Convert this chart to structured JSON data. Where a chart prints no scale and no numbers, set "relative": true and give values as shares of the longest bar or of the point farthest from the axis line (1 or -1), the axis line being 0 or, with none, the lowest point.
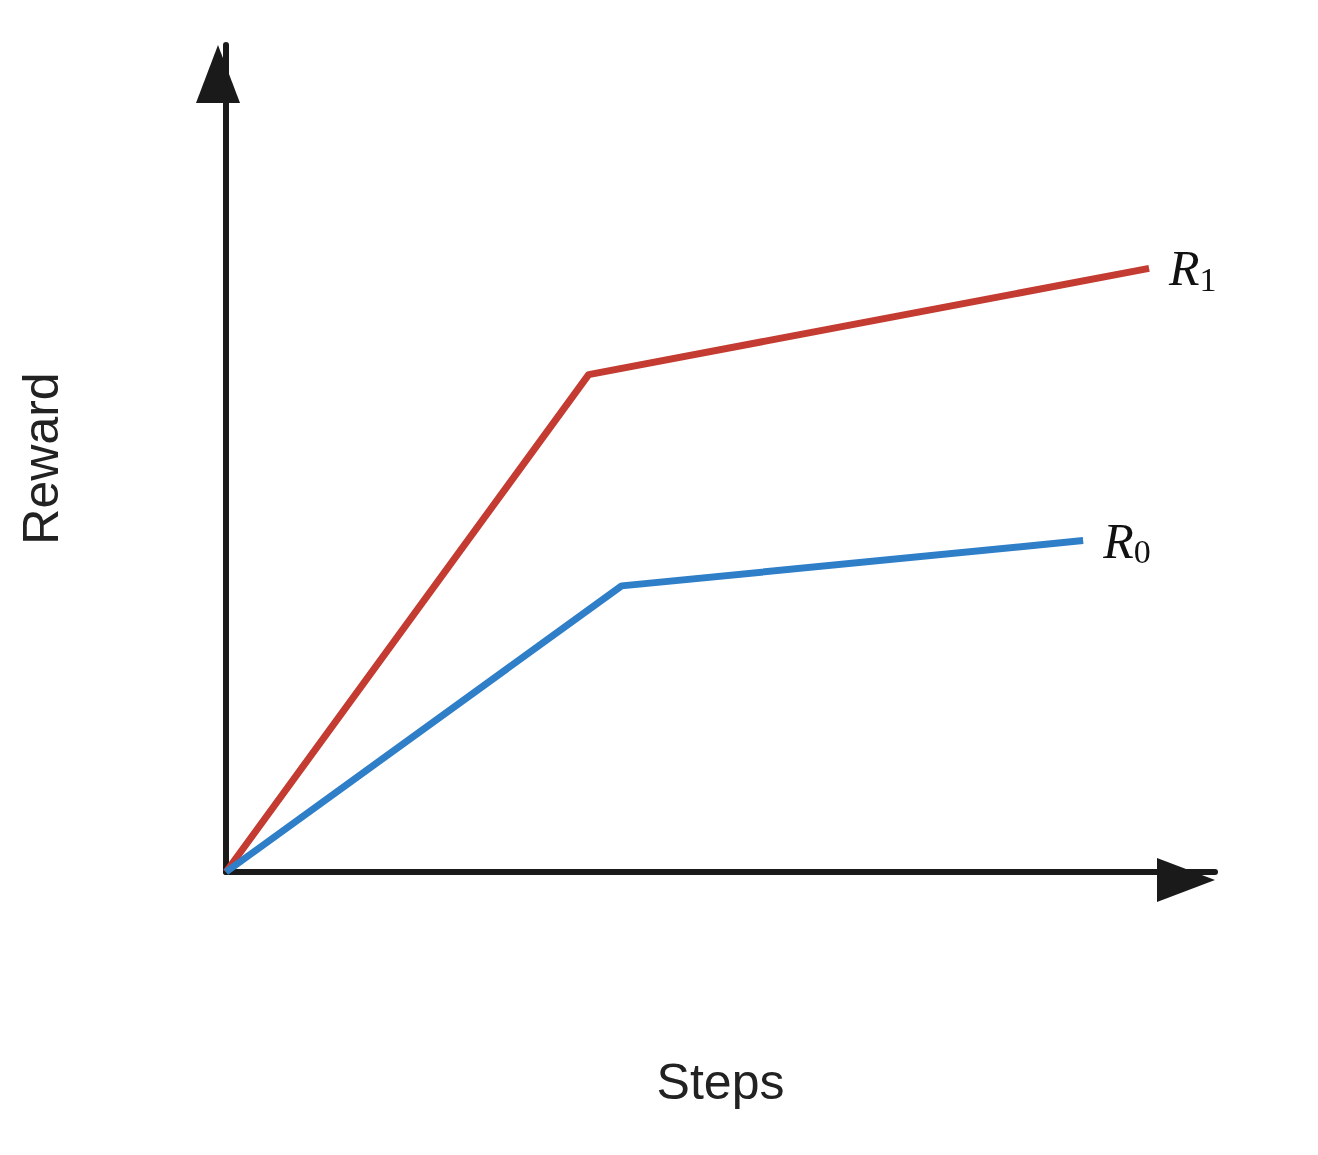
{
  "chart_data": {
    "type": "line",
    "relative": true,
    "xlabel": "Steps",
    "ylabel": "Reward",
    "legend": false,
    "grid": false,
    "marker": "none",
    "line_style": "solid",
    "categories": [
      null,
      null,
      null,
      null,
      null,
      null,
      null,
      null,
      null,
      null,
      null,
      null,
      null,
      null,
      null,
      null,
      null,
      null,
      null,
      null,
      null,
      null,
      null,
      null,
      null,
      null,
      null,
      null,
      null,
      null,
      null
    ],
    "series": [
      {
        "name": "R$_{1}$",
        "color": "#c43b31",
        "values": [
          0,
          null,
          null,
          null,
          null,
          null,
          null,
          null,
          null,
          null,
          null,
          0.824,
          null,
          null,
          null,
          null,
          null,
          null,
          null,
          null,
          null,
          null,
          null,
          null,
          null,
          null,
          null,
          null,
          1,
          null,
          null
        ]
      },
      {
        "name": "R$_{0}$",
        "color": "#2f7ec8",
        "values": [
          0,
          null,
          null,
          null,
          null,
          null,
          null,
          null,
          null,
          null,
          null,
          null,
          0.474,
          null,
          null,
          null,
          null,
          null,
          null,
          null,
          null,
          null,
          null,
          null,
          null,
          null,
          0.549,
          null,
          null,
          null,
          null
        ]
      }
    ]
  }
}
